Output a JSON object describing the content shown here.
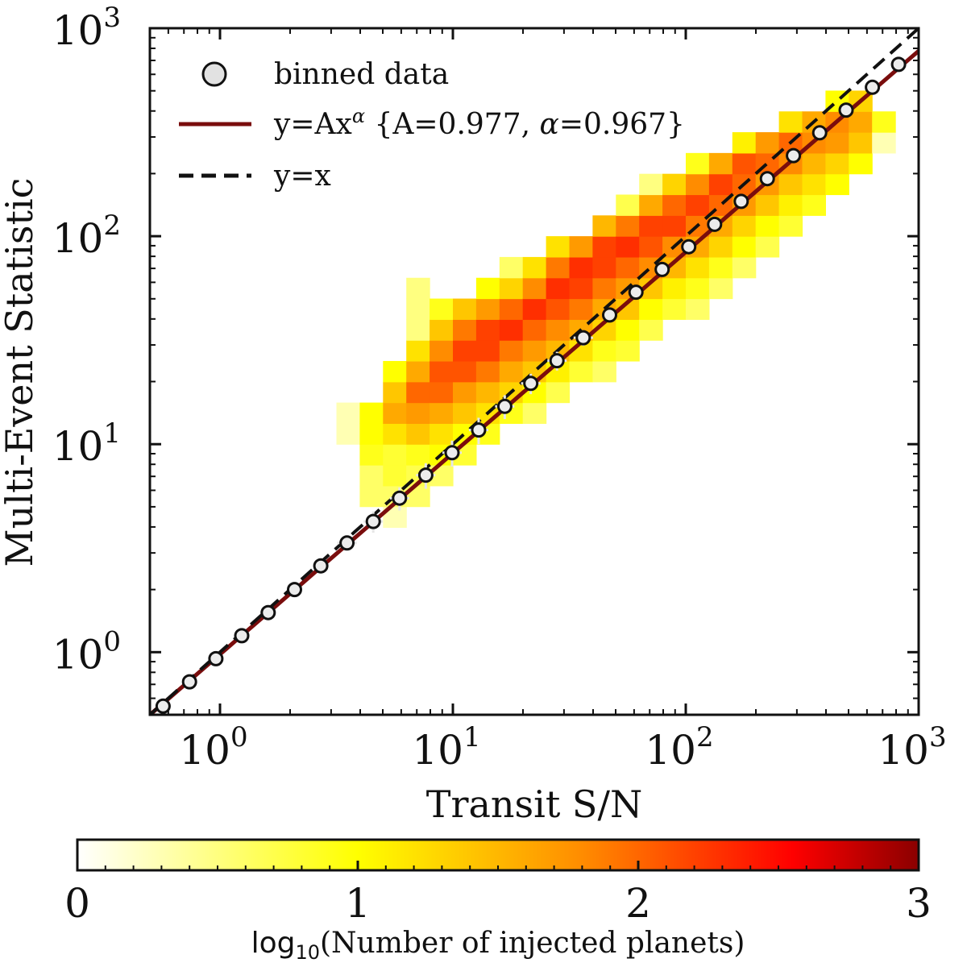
{
  "chart_data": {
    "type": "heatmap",
    "xlabel": "Transit S/N",
    "ylabel": "Multi-Event Statistic",
    "x_scale": "log",
    "y_scale": "log",
    "xlim": [
      0.5,
      1000
    ],
    "ylim": [
      0.5,
      1000
    ],
    "x_ticks": [
      {
        "text": "10",
        "sup": "0"
      },
      {
        "text": "10",
        "sup": "1"
      },
      {
        "text": "10",
        "sup": "2"
      },
      {
        "text": "10",
        "sup": "3"
      }
    ],
    "y_ticks": [
      {
        "text": "10",
        "sup": "0"
      },
      {
        "text": "10",
        "sup": "1"
      },
      {
        "text": "10",
        "sup": "2"
      },
      {
        "text": "10",
        "sup": "3"
      }
    ],
    "legend": {
      "placement": "top-left",
      "entries": [
        {
          "label": "binned data",
          "marker": "circle"
        },
        {
          "label": "y=Ax",
          "label_sup": "α",
          "label_tail": " {A=0.977, ",
          "label_alpha": "α",
          "label_end": "=0.967}",
          "style": "solid",
          "color": "#7a0d0d"
        },
        {
          "label": "y=x",
          "style": "dashed",
          "color": "#111111"
        }
      ]
    },
    "series": [
      {
        "name": "binned data",
        "type": "scatter",
        "x": [
          0.57,
          0.74,
          0.96,
          1.24,
          1.61,
          2.09,
          2.71,
          3.51,
          4.55,
          5.9,
          7.65,
          9.92,
          12.9,
          16.7,
          21.6,
          28.0,
          36.3,
          47.1,
          61.1,
          79.2,
          103,
          133,
          173,
          224,
          290,
          376,
          488,
          633,
          820
        ],
        "y": [
          0.55,
          0.72,
          0.93,
          1.2,
          1.55,
          2.0,
          2.6,
          3.35,
          4.25,
          5.5,
          7.1,
          9.1,
          11.7,
          15.2,
          19.6,
          25.2,
          32.5,
          41.8,
          53.8,
          69.2,
          89.0,
          114,
          147,
          189,
          244,
          314,
          404,
          520,
          670
        ],
        "y_err": [
          0,
          0,
          0,
          0,
          0,
          0,
          0,
          0.15,
          0.5,
          0.7,
          1.0,
          1.3,
          1.7,
          2.0,
          2.2,
          2.6,
          2.8,
          0,
          0,
          0,
          0,
          0,
          0,
          0,
          0,
          0,
          0,
          0,
          0
        ]
      },
      {
        "name": "y=Ax^alpha",
        "type": "line",
        "A": 0.977,
        "alpha": 0.967
      },
      {
        "name": "y=x",
        "type": "line",
        "A": 1.0,
        "alpha": 1.0
      }
    ],
    "heatmap": {
      "x_bins_log10": {
        "start": 0.5,
        "width": 0.1,
        "count": 26
      },
      "y_bins_log10": {
        "start": 0.0,
        "width": 0.1,
        "count": 27
      },
      "cells_log10_count": [
        [
          0,
          10,
          0.3
        ],
        [
          0,
          11,
          0.3
        ],
        [
          1,
          7,
          0.6
        ],
        [
          1,
          8,
          0.6
        ],
        [
          1,
          9,
          0.9
        ],
        [
          1,
          10,
          1.0
        ],
        [
          1,
          11,
          1.0
        ],
        [
          2,
          6,
          0.3
        ],
        [
          2,
          7,
          0.6
        ],
        [
          2,
          8,
          0.8
        ],
        [
          2,
          9,
          0.8
        ],
        [
          2,
          10,
          1.2
        ],
        [
          2,
          11,
          1.6
        ],
        [
          2,
          12,
          1.4
        ],
        [
          2,
          13,
          1.0
        ],
        [
          3,
          7,
          0.6
        ],
        [
          3,
          8,
          0.7
        ],
        [
          3,
          9,
          0.9
        ],
        [
          3,
          10,
          1.4
        ],
        [
          3,
          11,
          1.7
        ],
        [
          3,
          12,
          2.0
        ],
        [
          3,
          13,
          1.6
        ],
        [
          3,
          14,
          1.2
        ],
        [
          3,
          15,
          0.5
        ],
        [
          3,
          16,
          0.5
        ],
        [
          3,
          17,
          0.5
        ],
        [
          4,
          8,
          0.6
        ],
        [
          4,
          9,
          1.0
        ],
        [
          4,
          10,
          1.2
        ],
        [
          4,
          11,
          1.6
        ],
        [
          4,
          12,
          2.0
        ],
        [
          4,
          13,
          2.1
        ],
        [
          4,
          14,
          1.8
        ],
        [
          4,
          15,
          1.4
        ],
        [
          4,
          16,
          0.9
        ],
        [
          5,
          9,
          0.8
        ],
        [
          5,
          10,
          1.0
        ],
        [
          5,
          11,
          1.4
        ],
        [
          5,
          12,
          1.7
        ],
        [
          5,
          13,
          2.1
        ],
        [
          5,
          14,
          2.2
        ],
        [
          5,
          15,
          1.9
        ],
        [
          5,
          16,
          1.4
        ],
        [
          6,
          10,
          0.9
        ],
        [
          6,
          11,
          1.2
        ],
        [
          6,
          12,
          1.5
        ],
        [
          6,
          13,
          1.9
        ],
        [
          6,
          14,
          2.2
        ],
        [
          6,
          15,
          2.2
        ],
        [
          6,
          16,
          1.7
        ],
        [
          6,
          17,
          1.0
        ],
        [
          7,
          11,
          0.9
        ],
        [
          7,
          12,
          1.3
        ],
        [
          7,
          13,
          1.6
        ],
        [
          7,
          14,
          1.9
        ],
        [
          7,
          15,
          2.3
        ],
        [
          7,
          16,
          2.0
        ],
        [
          7,
          17,
          1.3
        ],
        [
          7,
          18,
          0.6
        ],
        [
          8,
          11,
          0.6
        ],
        [
          8,
          12,
          1.0
        ],
        [
          8,
          13,
          1.4
        ],
        [
          8,
          14,
          1.7
        ],
        [
          8,
          15,
          2.0
        ],
        [
          8,
          16,
          2.3
        ],
        [
          8,
          17,
          1.8
        ],
        [
          8,
          18,
          1.2
        ],
        [
          9,
          12,
          0.7
        ],
        [
          9,
          13,
          1.1
        ],
        [
          9,
          14,
          1.5
        ],
        [
          9,
          15,
          1.8
        ],
        [
          9,
          16,
          2.1
        ],
        [
          9,
          17,
          2.3
        ],
        [
          9,
          18,
          1.9
        ],
        [
          9,
          19,
          1.2
        ],
        [
          10,
          13,
          0.8
        ],
        [
          10,
          14,
          1.2
        ],
        [
          10,
          15,
          1.6
        ],
        [
          10,
          16,
          1.9
        ],
        [
          10,
          17,
          2.2
        ],
        [
          10,
          18,
          2.3
        ],
        [
          10,
          19,
          1.7
        ],
        [
          11,
          13,
          0.6
        ],
        [
          11,
          14,
          0.9
        ],
        [
          11,
          15,
          1.3
        ],
        [
          11,
          16,
          1.6
        ],
        [
          11,
          17,
          1.9
        ],
        [
          11,
          18,
          2.2
        ],
        [
          11,
          19,
          2.2
        ],
        [
          11,
          20,
          1.5
        ],
        [
          12,
          14,
          0.8
        ],
        [
          12,
          15,
          1.0
        ],
        [
          12,
          16,
          1.4
        ],
        [
          12,
          17,
          1.7
        ],
        [
          12,
          18,
          2.0
        ],
        [
          12,
          19,
          2.3
        ],
        [
          12,
          20,
          1.9
        ],
        [
          12,
          21,
          0.7
        ],
        [
          13,
          15,
          0.7
        ],
        [
          13,
          16,
          1.0
        ],
        [
          13,
          17,
          1.4
        ],
        [
          13,
          18,
          1.8
        ],
        [
          13,
          19,
          2.1
        ],
        [
          13,
          20,
          2.2
        ],
        [
          13,
          21,
          1.6
        ],
        [
          13,
          22,
          0.5
        ],
        [
          14,
          16,
          0.8
        ],
        [
          14,
          17,
          1.1
        ],
        [
          14,
          18,
          1.5
        ],
        [
          14,
          19,
          1.8
        ],
        [
          14,
          20,
          2.2
        ],
        [
          14,
          21,
          2.0
        ],
        [
          14,
          22,
          1.3
        ],
        [
          15,
          16,
          0.6
        ],
        [
          15,
          17,
          0.9
        ],
        [
          15,
          18,
          1.2
        ],
        [
          15,
          19,
          1.6
        ],
        [
          15,
          20,
          1.9
        ],
        [
          15,
          21,
          2.2
        ],
        [
          15,
          22,
          1.8
        ],
        [
          15,
          23,
          0.9
        ],
        [
          16,
          17,
          0.6
        ],
        [
          16,
          18,
          0.9
        ],
        [
          16,
          19,
          1.3
        ],
        [
          16,
          20,
          1.6
        ],
        [
          16,
          21,
          2.0
        ],
        [
          16,
          22,
          2.2
        ],
        [
          16,
          23,
          1.6
        ],
        [
          17,
          18,
          0.6
        ],
        [
          17,
          19,
          1.0
        ],
        [
          17,
          20,
          1.3
        ],
        [
          17,
          21,
          1.7
        ],
        [
          17,
          22,
          2.0
        ],
        [
          17,
          23,
          2.1
        ],
        [
          17,
          24,
          1.1
        ],
        [
          18,
          19,
          0.7
        ],
        [
          18,
          20,
          1.0
        ],
        [
          18,
          21,
          1.4
        ],
        [
          18,
          22,
          1.7
        ],
        [
          18,
          23,
          2.0
        ],
        [
          18,
          24,
          1.7
        ],
        [
          19,
          20,
          0.8
        ],
        [
          19,
          21,
          1.1
        ],
        [
          19,
          22,
          1.4
        ],
        [
          19,
          23,
          1.8
        ],
        [
          19,
          24,
          2.0
        ],
        [
          19,
          25,
          1.2
        ],
        [
          20,
          21,
          0.9
        ],
        [
          20,
          22,
          1.2
        ],
        [
          20,
          23,
          1.5
        ],
        [
          20,
          24,
          1.8
        ],
        [
          20,
          25,
          1.6
        ],
        [
          21,
          22,
          1.0
        ],
        [
          21,
          23,
          1.3
        ],
        [
          21,
          24,
          1.7
        ],
        [
          21,
          25,
          1.8
        ],
        [
          21,
          26,
          1.0
        ],
        [
          22,
          23,
          1.0
        ],
        [
          22,
          24,
          1.4
        ],
        [
          22,
          25,
          1.6
        ],
        [
          22,
          26,
          1.3
        ],
        [
          23,
          24,
          0.3
        ],
        [
          23,
          25,
          0.9
        ]
      ]
    },
    "colorbar": {
      "label_prefix": "log",
      "label_sub": "10",
      "label_rest": "(Number of injected planets)",
      "min": 0,
      "max": 3,
      "ticks": [
        "0",
        "1",
        "2",
        "3"
      ],
      "colors": [
        "#ffffff",
        "#ffff00",
        "#ff8c00",
        "#ff0000",
        "#8b0000"
      ]
    }
  }
}
